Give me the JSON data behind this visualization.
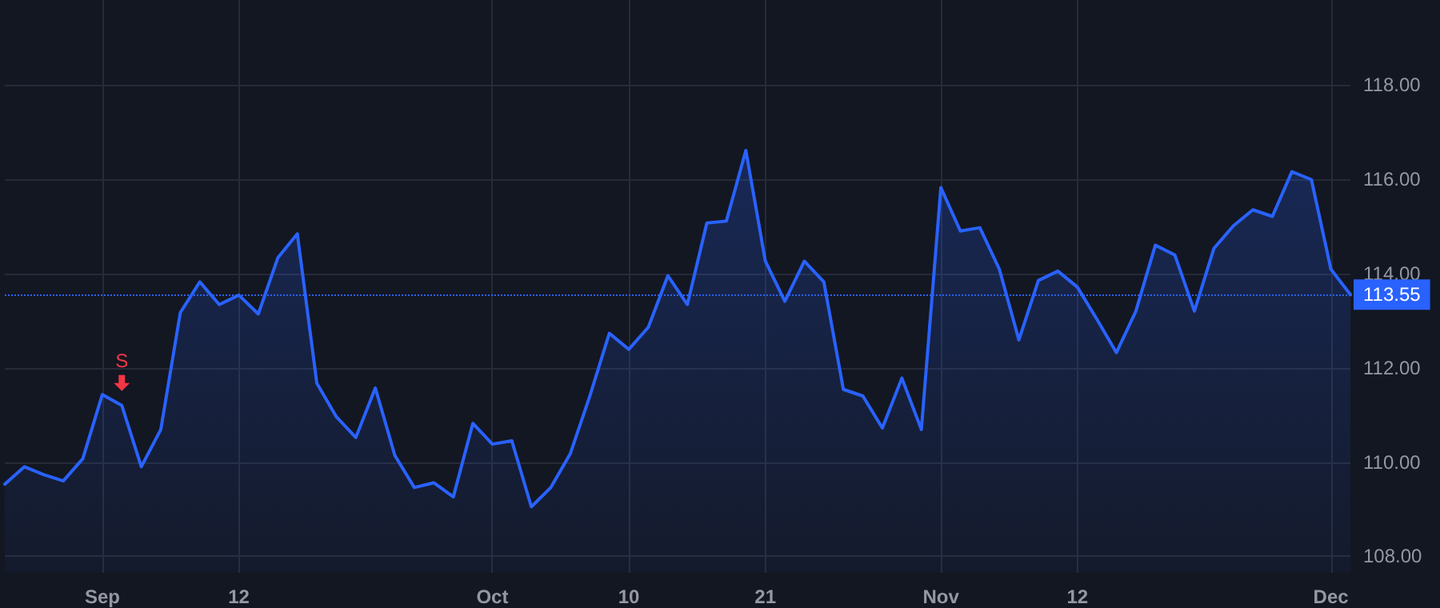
{
  "chart_data": {
    "type": "area",
    "categories": [
      null,
      null,
      null,
      null,
      null,
      "Sep",
      null,
      null,
      null,
      null,
      null,
      null,
      "12",
      null,
      null,
      null,
      null,
      null,
      null,
      null,
      null,
      null,
      null,
      null,
      null,
      "Oct",
      null,
      null,
      null,
      null,
      null,
      null,
      "10",
      null,
      null,
      null,
      null,
      null,
      null,
      "21",
      null,
      null,
      null,
      null,
      null,
      null,
      null,
      null,
      "Nov",
      null,
      null,
      null,
      null,
      null,
      null,
      "12",
      null,
      null,
      null,
      null,
      null,
      null,
      null,
      null,
      null,
      null,
      null,
      null,
      "Dec",
      null
    ],
    "series": [
      {
        "color": "#2962ff",
        "values": [
          109.53,
          109.9,
          109.73,
          109.6,
          110.07,
          111.43,
          111.2,
          109.9,
          110.69,
          113.17,
          113.82,
          113.34,
          113.54,
          113.14,
          114.33,
          114.84,
          111.67,
          110.96,
          110.52,
          111.57,
          110.14,
          109.46,
          109.56,
          109.26,
          110.82,
          110.38,
          110.45,
          109.05,
          109.46,
          110.18,
          111.4,
          112.73,
          112.39,
          112.86,
          113.95,
          113.34,
          115.07,
          115.11,
          116.61,
          114.26,
          113.41,
          114.26,
          113.82,
          111.54,
          111.4,
          110.72,
          111.78,
          110.69,
          115.82,
          114.9,
          114.97,
          114.09,
          112.59,
          113.85,
          114.05,
          113.71,
          113.03,
          112.32,
          113.2,
          114.6,
          114.39,
          113.2,
          114.53,
          115.01,
          115.35,
          115.21,
          116.16,
          115.99,
          114.09,
          113.55
        ]
      }
    ],
    "ylim": [
      107.65,
      119.8
    ],
    "yticks": [
      {
        "value": 108,
        "label": "108.00"
      },
      {
        "value": 110,
        "label": "110.00"
      },
      {
        "value": 112,
        "label": "112.00"
      },
      {
        "value": 114,
        "label": "114.00"
      },
      {
        "value": 116,
        "label": "116.00"
      },
      {
        "value": 118,
        "label": "118.00"
      }
    ],
    "ref_lines": [
      {
        "axis": "y",
        "value": 113.55,
        "label": "113.55",
        "color": "#2962ff",
        "line_style": "dotted"
      }
    ],
    "annotations": [
      {
        "text": "S",
        "y": 111.2
      }
    ],
    "grid": true,
    "marker": "none",
    "line_style": "solid"
  }
}
